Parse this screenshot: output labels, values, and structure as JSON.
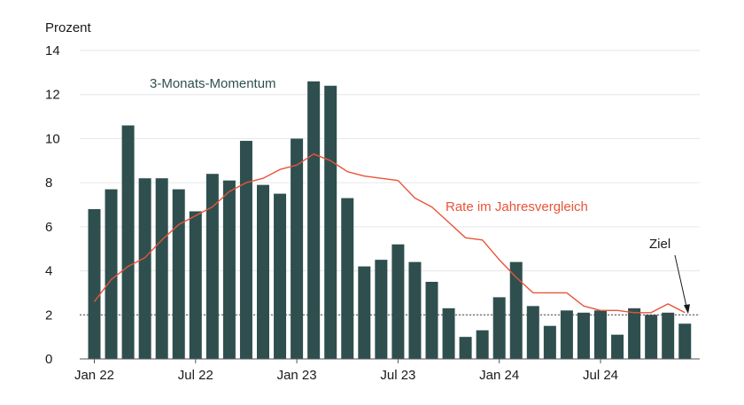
{
  "chart_data": {
    "type": "bar",
    "ylabel": "Prozent",
    "ylim": [
      0,
      14
    ],
    "yticks": [
      "0",
      "2",
      "4",
      "6",
      "8",
      "10",
      "12",
      "14"
    ],
    "x_tick_labels": [
      {
        "index": 0,
        "label": "Jan 22"
      },
      {
        "index": 6,
        "label": "Jul 22"
      },
      {
        "index": 12,
        "label": "Jan 23"
      },
      {
        "index": 18,
        "label": "Jul 23"
      },
      {
        "index": 24,
        "label": "Jan 24"
      },
      {
        "index": 30,
        "label": "Jul 24"
      }
    ],
    "grid": true,
    "series": [
      {
        "name": "3-Monats-Momentum",
        "kind": "bar",
        "color": "#2f4f4f",
        "values": [
          6.8,
          7.7,
          10.6,
          8.2,
          8.2,
          7.7,
          6.7,
          8.4,
          8.1,
          9.9,
          7.9,
          7.5,
          10.0,
          12.6,
          12.4,
          7.3,
          4.2,
          4.5,
          5.2,
          4.4,
          3.5,
          2.3,
          1.0,
          1.3,
          2.8,
          4.4,
          2.4,
          1.5,
          2.2,
          2.1,
          2.2,
          1.1,
          2.3,
          2.0,
          2.1,
          1.6
        ]
      },
      {
        "name": "Rate im Jahresvergleich",
        "kind": "line",
        "color": "#e8543a",
        "values": [
          2.6,
          3.6,
          4.2,
          4.6,
          5.4,
          6.1,
          6.5,
          6.9,
          7.6,
          8.0,
          8.2,
          8.6,
          8.8,
          9.3,
          9.0,
          8.5,
          8.3,
          8.2,
          8.1,
          7.3,
          6.9,
          6.2,
          5.5,
          5.4,
          4.5,
          3.7,
          3.0,
          3.0,
          3.0,
          2.4,
          2.2,
          2.2,
          2.1,
          2.1,
          2.5,
          2.1
        ]
      }
    ],
    "target": {
      "label": "Ziel",
      "value": 2
    }
  }
}
